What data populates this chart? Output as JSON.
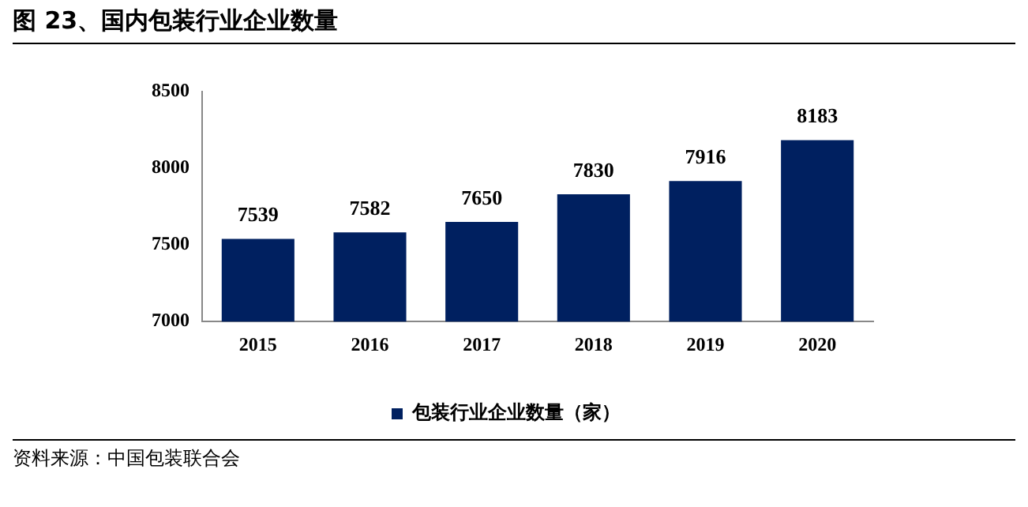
{
  "chart_data": {
    "type": "bar",
    "title": "图 23、国内包装行业企业数量",
    "categories": [
      "2015",
      "2016",
      "2017",
      "2018",
      "2019",
      "2020"
    ],
    "series": [
      {
        "name": "包装行业企业数量（家）",
        "color": "#002060",
        "values": [
          7539,
          7582,
          7650,
          7830,
          7916,
          8183
        ]
      }
    ],
    "ylim": [
      7000,
      8500
    ],
    "yticks": [
      7000,
      7500,
      8000,
      8500
    ],
    "grid": false,
    "legend": "bottom",
    "data_labels": true,
    "annotations": [
      "资料来源：中国包装联合会"
    ]
  }
}
